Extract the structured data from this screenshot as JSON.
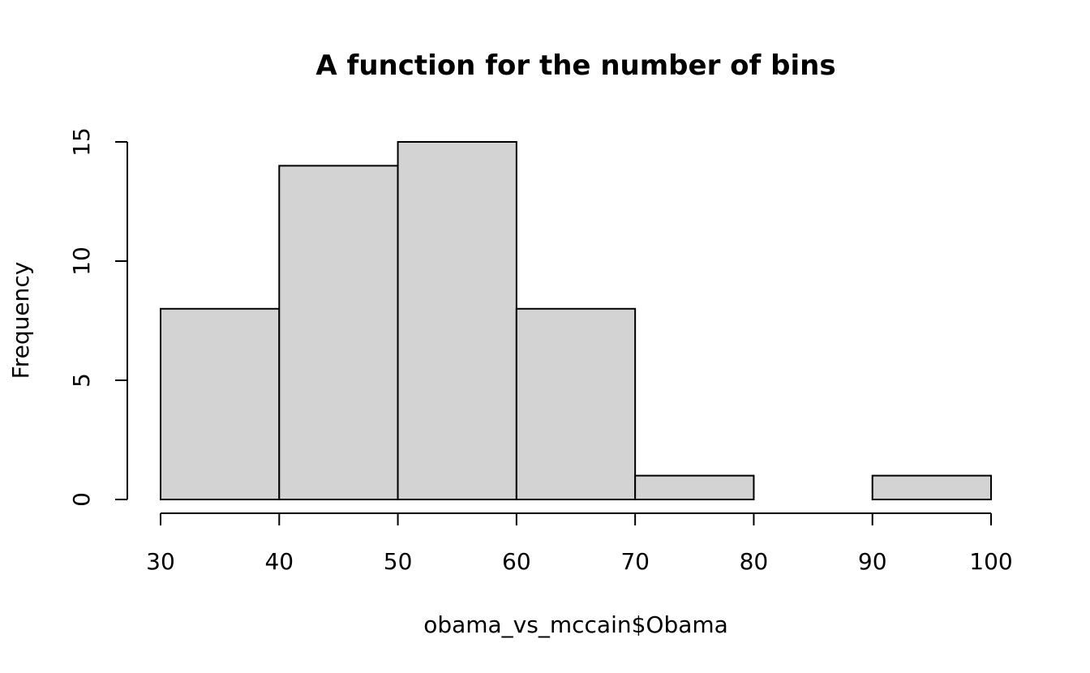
{
  "chart_data": {
    "type": "histogram",
    "title": "A function for the number of bins",
    "x_label": "obama_vs_mccain$Obama",
    "y_label": "Frequency",
    "bins": [
      30,
      40,
      50,
      60,
      70,
      80,
      90,
      100
    ],
    "values": [
      8,
      14,
      15,
      8,
      1,
      0,
      1
    ],
    "color": "#d3d3d3",
    "edge_color": "#000000",
    "xlim": [
      30,
      100
    ],
    "xticks": [
      30,
      40,
      50,
      60,
      70,
      80,
      90,
      100
    ],
    "ylim": [
      0,
      15
    ],
    "yticks": [
      0,
      5,
      10,
      15
    ],
    "grid": false
  }
}
